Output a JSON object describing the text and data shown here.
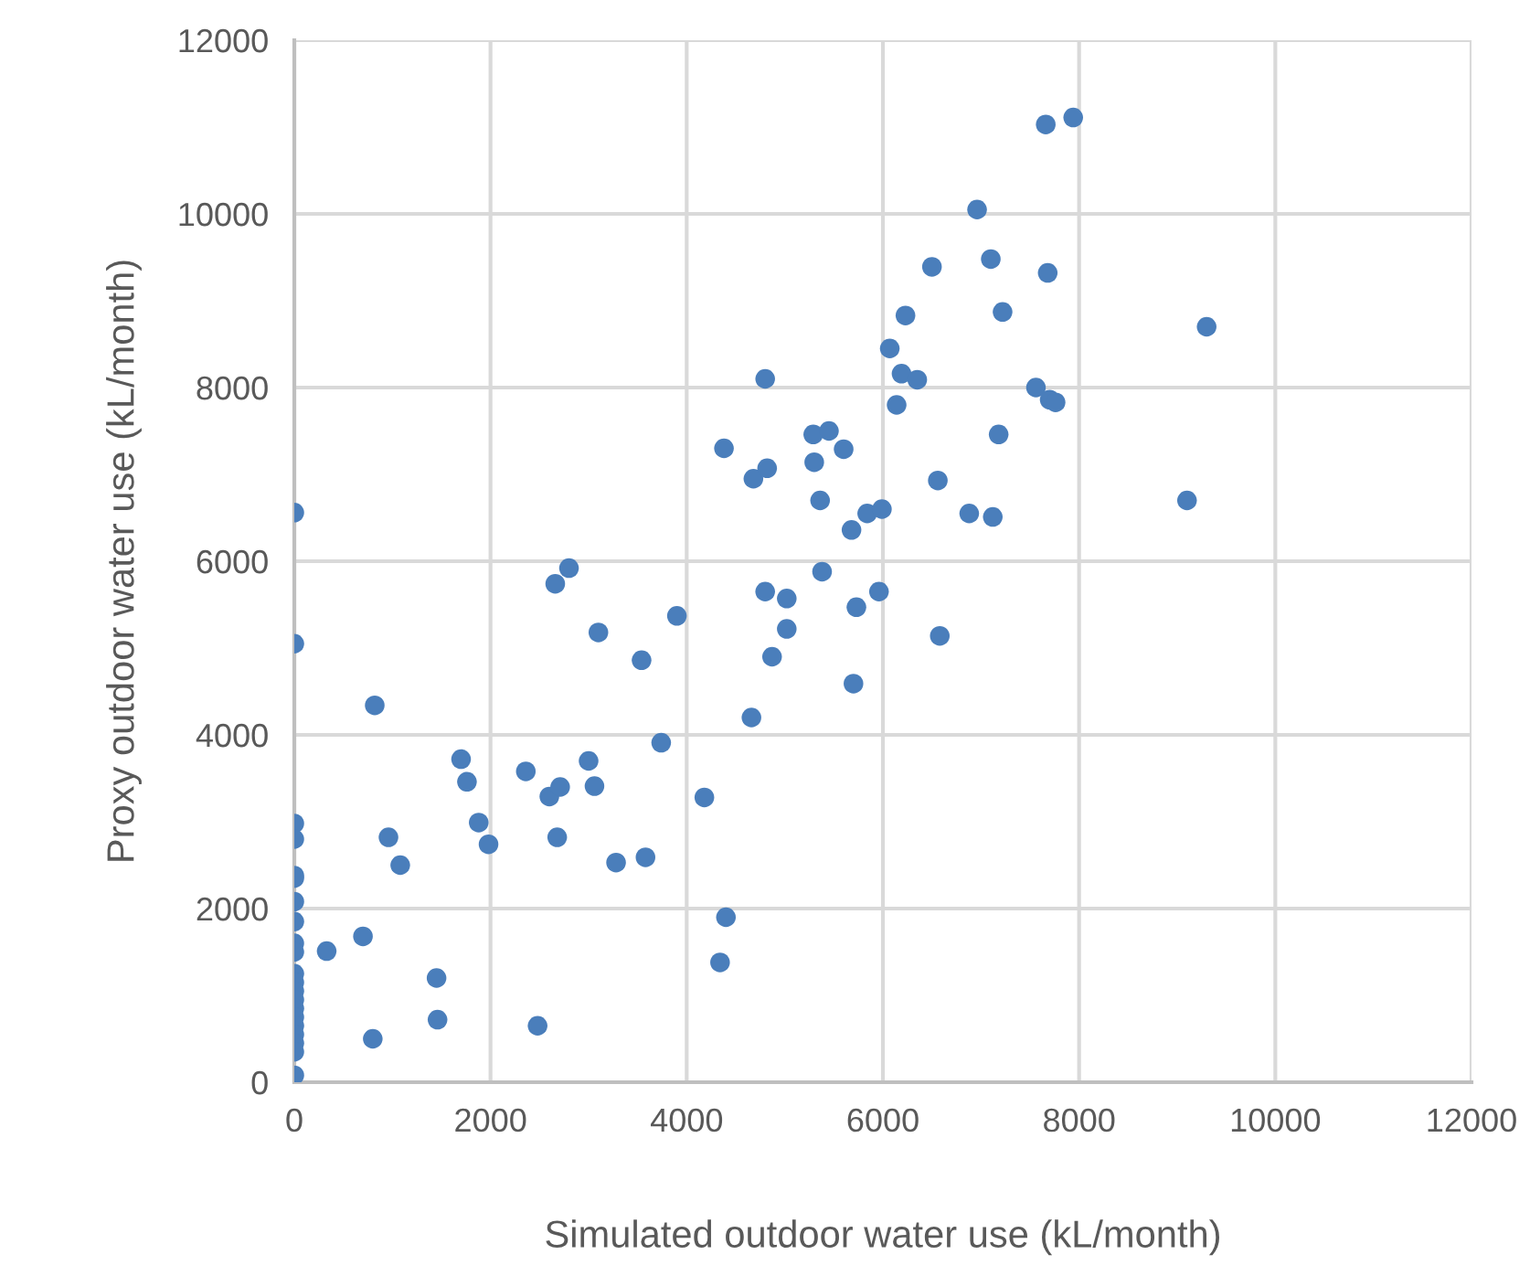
{
  "chart_data": {
    "type": "scatter",
    "xlabel": "Simulated outdoor water use (kL/month)",
    "ylabel": "Proxy outdoor water use (kL/month)",
    "xlim": [
      0,
      12000
    ],
    "ylim": [
      0,
      12000
    ],
    "xticks": [
      0,
      2000,
      4000,
      6000,
      8000,
      10000,
      12000
    ],
    "yticks": [
      0,
      2000,
      4000,
      6000,
      8000,
      10000,
      12000
    ],
    "grid": true,
    "marker": "circle",
    "series": [
      {
        "color": "#4a7ebb",
        "x": [
          0,
          0,
          0,
          0,
          0,
          0,
          0,
          0,
          0,
          0,
          0,
          0,
          0,
          0,
          0,
          0,
          0,
          0,
          0,
          0,
          0,
          330,
          700,
          800,
          820,
          960,
          1080,
          1450,
          1460,
          1700,
          1760,
          1880,
          1980,
          2360,
          2480,
          2600,
          2660,
          2680,
          2710,
          2800,
          3000,
          3060,
          3100,
          3280,
          3540,
          3580,
          3740,
          3900,
          4180,
          4340,
          4380,
          4400,
          4660,
          4680,
          4800,
          4800,
          4820,
          4870,
          5020,
          5020,
          5290,
          5300,
          5360,
          5380,
          5450,
          5600,
          5680,
          5700,
          5730,
          5840,
          5960,
          5990,
          6070,
          6140,
          6190,
          6230,
          6350,
          6500,
          6560,
          6580,
          6880,
          6960,
          7100,
          7120,
          7180,
          7220,
          7560,
          7660,
          7680,
          7700,
          7760,
          7940,
          9100,
          9300
        ],
        "values": [
          6560,
          5050,
          2980,
          2800,
          2380,
          2350,
          2080,
          1850,
          1600,
          1500,
          1250,
          1150,
          1050,
          950,
          850,
          750,
          650,
          550,
          450,
          350,
          80,
          1510,
          1680,
          500,
          4340,
          2820,
          2500,
          1200,
          720,
          3720,
          3460,
          2990,
          2740,
          3580,
          650,
          3290,
          5740,
          2820,
          3400,
          5920,
          3700,
          3410,
          5180,
          2530,
          4860,
          2590,
          3910,
          5370,
          3280,
          1380,
          7300,
          1900,
          4200,
          6950,
          5650,
          8100,
          7070,
          4900,
          5220,
          5570,
          7460,
          7140,
          6700,
          5880,
          7500,
          7290,
          6360,
          4590,
          5470,
          6550,
          5650,
          6600,
          8450,
          7800,
          8160,
          8830,
          8090,
          9390,
          6930,
          5140,
          6550,
          10050,
          9480,
          6510,
          7460,
          8870,
          8000,
          11030,
          9320,
          7860,
          7830,
          11110,
          6700,
          8700
        ]
      }
    ]
  }
}
